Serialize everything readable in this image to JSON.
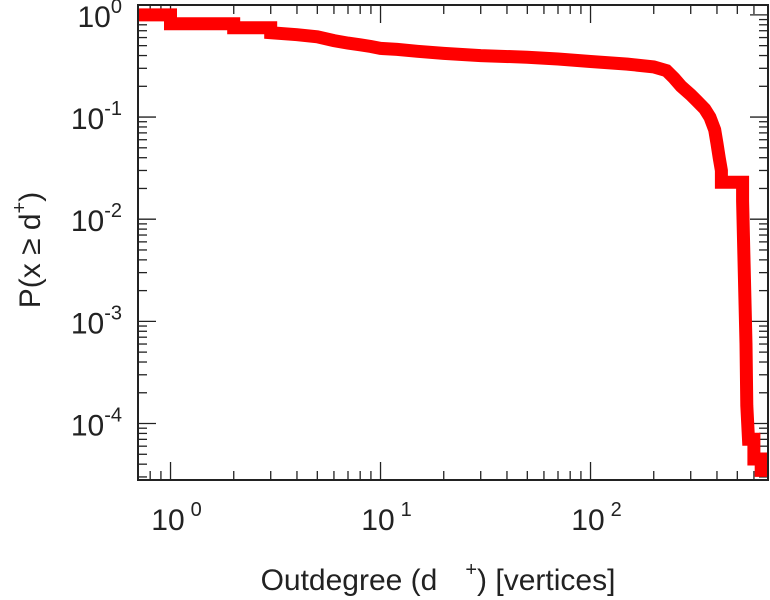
{
  "chart_data": {
    "type": "line",
    "step": true,
    "xscale": "log",
    "yscale": "log",
    "xlim": [
      0.7,
      700
    ],
    "ylim": [
      2.8e-05,
      1.25
    ],
    "xlabel": {
      "pre": "Outdegree (d",
      "sup": "+",
      "post": ") [vertices]"
    },
    "ylabel": {
      "pre": "P(x ≥ d",
      "sup": "+",
      "post": ")"
    },
    "xticks": [
      {
        "value": 1,
        "base": "10",
        "exp": "0"
      },
      {
        "value": 10,
        "base": "10",
        "exp": "1"
      },
      {
        "value": 100,
        "base": "10",
        "exp": "2"
      }
    ],
    "yticks": [
      {
        "value": 1,
        "base": "10",
        "exp": "0"
      },
      {
        "value": 0.1,
        "base": "10",
        "exp": "-1"
      },
      {
        "value": 0.01,
        "base": "10",
        "exp": "-2"
      },
      {
        "value": 0.001,
        "base": "10",
        "exp": "-3"
      },
      {
        "value": 0.0001,
        "base": "10",
        "exp": "-4"
      }
    ],
    "grid": false,
    "series": [
      {
        "color": "#ff0000",
        "points": [
          [
            0.7,
            1.0
          ],
          [
            1,
            1.0
          ],
          [
            1,
            0.82
          ],
          [
            2,
            0.82
          ],
          [
            2,
            0.75
          ],
          [
            3,
            0.75
          ],
          [
            3,
            0.67
          ],
          [
            4,
            0.64
          ],
          [
            5,
            0.61
          ],
          [
            6,
            0.56
          ],
          [
            7,
            0.53
          ],
          [
            8,
            0.51
          ],
          [
            9,
            0.49
          ],
          [
            10,
            0.47
          ],
          [
            12,
            0.46
          ],
          [
            15,
            0.44
          ],
          [
            20,
            0.42
          ],
          [
            30,
            0.4
          ],
          [
            50,
            0.385
          ],
          [
            70,
            0.37
          ],
          [
            100,
            0.35
          ],
          [
            150,
            0.33
          ],
          [
            200,
            0.31
          ],
          [
            230,
            0.285
          ],
          [
            250,
            0.24
          ],
          [
            270,
            0.2
          ],
          [
            300,
            0.165
          ],
          [
            320,
            0.145
          ],
          [
            350,
            0.12
          ],
          [
            370,
            0.1
          ],
          [
            390,
            0.075
          ],
          [
            400,
            0.055
          ],
          [
            410,
            0.04
          ],
          [
            420,
            0.03
          ],
          [
            420,
            0.023
          ],
          [
            530,
            0.023
          ],
          [
            530,
            0.015
          ],
          [
            540,
            0.003
          ],
          [
            550,
            0.0006
          ],
          [
            555,
            0.00015
          ],
          [
            565,
            7e-05
          ],
          [
            600,
            7e-05
          ],
          [
            600,
            4.5e-05
          ],
          [
            650,
            4.5e-05
          ],
          [
            650,
            3e-05
          ]
        ]
      }
    ]
  }
}
